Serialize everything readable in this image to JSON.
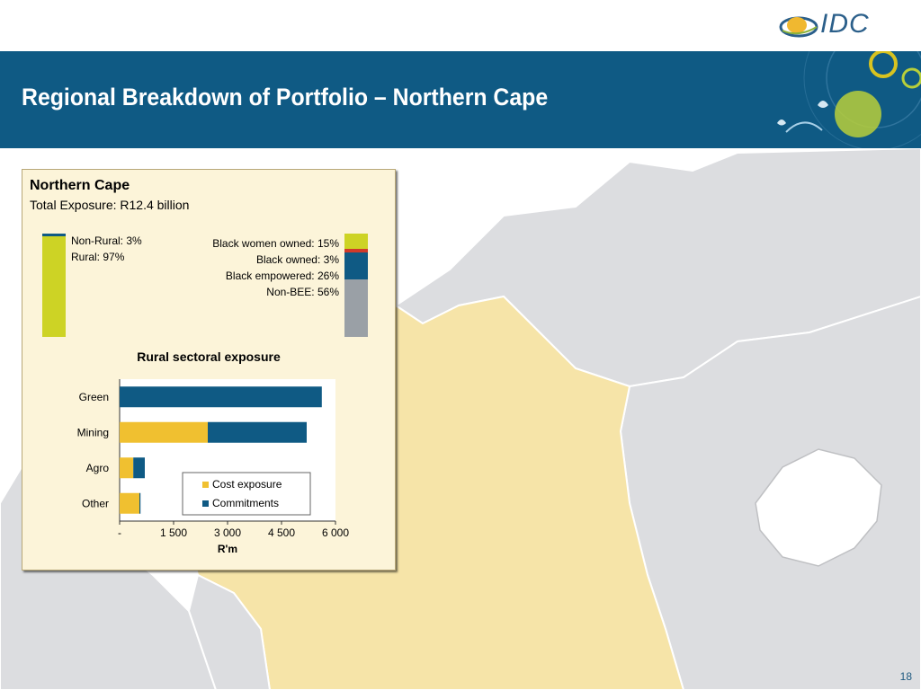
{
  "slide": {
    "title": "Regional Breakdown of Portfolio – Northern Cape",
    "logo_text": "IDC",
    "page_number": "18"
  },
  "panel": {
    "region": "Northern Cape",
    "total_exposure": "Total Exposure: R12.4 billion",
    "location_split": [
      {
        "label": "Non-Rural: 3%",
        "value": 3,
        "color": "#0f5a84"
      },
      {
        "label": "Rural: 97%",
        "value": 97,
        "color": "#cdd325"
      }
    ],
    "ownership_split": [
      {
        "label": "Black women owned: 15%",
        "value": 15,
        "color": "#cdd325"
      },
      {
        "label": "Black owned: 3%",
        "value": 3,
        "color": "#d03a2a"
      },
      {
        "label": "Black empowered: 26%",
        "value": 26,
        "color": "#0f5a84"
      },
      {
        "label": "Non-BEE: 56%",
        "value": 56,
        "color": "#9aa0a6"
      }
    ]
  },
  "chart_data": {
    "type": "bar",
    "orientation": "horizontal",
    "stacked": true,
    "title": "Rural sectoral exposure",
    "xlabel": "R'm",
    "ylabel": "",
    "categories": [
      "Green",
      "Mining",
      "Agro",
      "Other"
    ],
    "series": [
      {
        "name": "Cost exposure",
        "color": "#f0c030",
        "values": [
          0,
          2450,
          380,
          550
        ]
      },
      {
        "name": "Commitments",
        "color": "#0f5a84",
        "values": [
          5620,
          2750,
          320,
          30
        ]
      }
    ],
    "xlim": [
      0,
      6000
    ],
    "xticks": [
      {
        "value": 0,
        "label": "-"
      },
      {
        "value": 1500,
        "label": "1 500"
      },
      {
        "value": 3000,
        "label": "3 000"
      },
      {
        "value": 4500,
        "label": "4 500"
      },
      {
        "value": 6000,
        "label": "6 000"
      }
    ],
    "legend_position": "bottom-right",
    "grid": false
  }
}
